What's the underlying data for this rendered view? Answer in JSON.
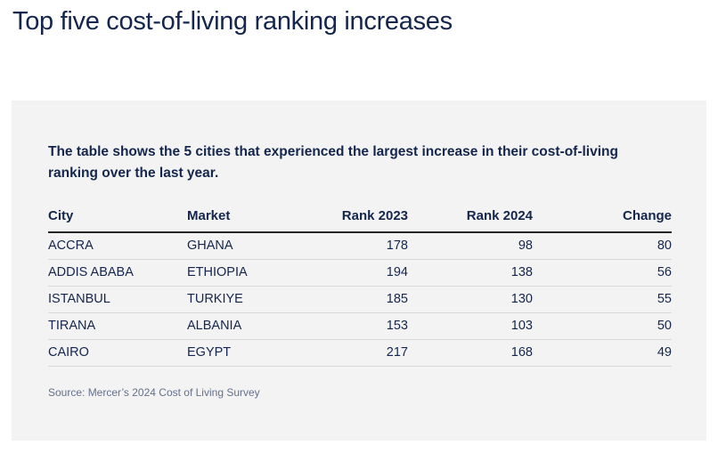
{
  "page": {
    "title": "Top five cost-of-living ranking increases"
  },
  "card": {
    "intro": "The table shows the 5 cities that experienced the largest increase in their cost-of-living ranking over the last year.",
    "source": "Source: Mercer’s 2024 Cost of Living Survey"
  },
  "chart_data": {
    "type": "table",
    "title": "Top five cost-of-living ranking increases",
    "columns": [
      "City",
      "Market",
      "Rank 2023",
      "Rank 2024",
      "Change"
    ],
    "rows": [
      [
        "ACCRA",
        "GHANA",
        178,
        98,
        80
      ],
      [
        "ADDIS ABABA",
        "ETHIOPIA",
        194,
        138,
        56
      ],
      [
        "ISTANBUL",
        "TURKIYE",
        185,
        130,
        55
      ],
      [
        "TIRANA",
        "ALBANIA",
        153,
        103,
        50
      ],
      [
        "CAIRO",
        "EGYPT",
        217,
        168,
        49
      ]
    ],
    "layout_hints": {
      "numeric_columns_right_aligned": [
        "Rank 2023",
        "Rank 2024",
        "Change"
      ],
      "header_rule": true,
      "row_dividers": true
    }
  },
  "colors": {
    "navy_text": "#14264d",
    "card_background": "#f3f3f3",
    "header_rule": "#252525",
    "row_divider": "#d8d8d8",
    "source_text": "#64708d",
    "page_background": "#ffffff"
  }
}
